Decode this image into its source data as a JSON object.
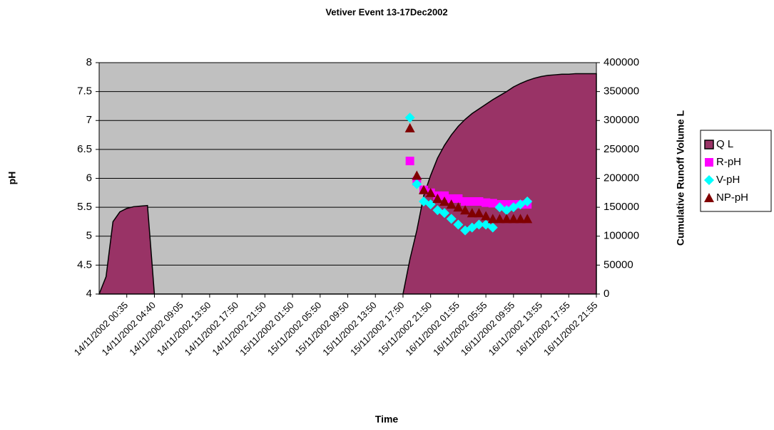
{
  "chart_data": {
    "type": "area",
    "title": "Vetiver Event 13-17Dec2002",
    "xlabel": "Time",
    "ylabel": "pH",
    "y2label": "Cumulative Runoff Volume L",
    "categories": [
      null,
      null,
      null,
      null,
      "14/11/2002 00:35",
      null,
      null,
      null,
      "14/11/2002 04:40",
      null,
      null,
      null,
      "14/11/2002 09:05",
      null,
      null,
      null,
      "14/11/2002 13:50",
      null,
      null,
      null,
      "14/11/2002 17:50",
      null,
      null,
      null,
      "14/11/2002 21:50",
      null,
      null,
      null,
      "15/11/2002 01:50",
      null,
      null,
      null,
      "15/11/2002 05:50",
      null,
      null,
      null,
      "15/11/2002 09:50",
      null,
      null,
      null,
      "15/11/2002 13:50",
      null,
      null,
      null,
      "15/11/2002 17:50",
      null,
      null,
      null,
      "15/11/2002 21:50",
      null,
      null,
      null,
      "16/11/2002 01:55",
      null,
      null,
      null,
      "16/11/2002 05:55",
      null,
      null,
      null,
      "16/11/2002 09:55",
      null,
      null,
      null,
      "16/11/2002 13:55",
      null,
      null,
      null,
      "16/11/2002 17:55",
      null,
      null,
      null,
      "16/11/2002 21:55"
    ],
    "series": [
      {
        "name": "Q L",
        "type": "area",
        "axis": "y2",
        "color": "#993366",
        "marker": "square",
        "values": [
          0,
          30000,
          125000,
          142000,
          148000,
          151000,
          152000,
          153000,
          0,
          0,
          0,
          0,
          0,
          0,
          0,
          0,
          0,
          0,
          0,
          0,
          0,
          0,
          0,
          0,
          0,
          0,
          0,
          0,
          0,
          0,
          0,
          0,
          0,
          0,
          0,
          0,
          0,
          0,
          0,
          0,
          0,
          0,
          0,
          0,
          0,
          60000,
          110000,
          170000,
          205000,
          235000,
          257000,
          275000,
          290000,
          302000,
          312000,
          320000,
          328000,
          336000,
          343000,
          350000,
          358000,
          364000,
          369000,
          373000,
          376000,
          378000,
          379000,
          380000,
          380000,
          381000,
          381000,
          381000,
          381000
        ]
      },
      {
        "name": "R-pH",
        "type": "scatter",
        "color": "#ff00ff",
        "marker": "square",
        "values": [
          null,
          null,
          null,
          null,
          null,
          null,
          null,
          null,
          null,
          null,
          null,
          null,
          null,
          null,
          null,
          null,
          null,
          null,
          null,
          null,
          null,
          null,
          null,
          null,
          null,
          null,
          null,
          null,
          null,
          null,
          null,
          null,
          null,
          null,
          null,
          null,
          null,
          null,
          null,
          null,
          null,
          null,
          null,
          null,
          null,
          6.3,
          5.95,
          5.8,
          5.75,
          5.7,
          5.7,
          5.65,
          5.65,
          5.6,
          5.6,
          5.6,
          5.58,
          5.57,
          5.55,
          5.55,
          5.55,
          5.55,
          5.55,
          null,
          null,
          null,
          null,
          null,
          null,
          null,
          null,
          null,
          null
        ]
      },
      {
        "name": "V-pH",
        "type": "scatter",
        "color": "#00ffff",
        "marker": "diamond",
        "values": [
          null,
          null,
          null,
          null,
          null,
          null,
          null,
          null,
          null,
          null,
          null,
          null,
          null,
          null,
          null,
          null,
          null,
          null,
          null,
          null,
          null,
          null,
          null,
          null,
          null,
          null,
          null,
          null,
          null,
          null,
          null,
          null,
          null,
          null,
          null,
          null,
          null,
          null,
          null,
          null,
          null,
          null,
          null,
          null,
          null,
          7.05,
          5.9,
          5.6,
          5.55,
          5.45,
          5.4,
          5.3,
          5.2,
          5.1,
          5.15,
          5.2,
          5.2,
          5.15,
          5.5,
          5.45,
          5.5,
          5.55,
          5.6,
          null,
          null,
          null,
          null,
          null,
          null,
          null,
          null,
          null,
          null
        ]
      },
      {
        "name": "NP-pH",
        "type": "scatter",
        "color": "#800000",
        "marker": "triangle",
        "values": [
          null,
          null,
          null,
          null,
          null,
          null,
          null,
          null,
          null,
          null,
          null,
          null,
          null,
          null,
          null,
          null,
          null,
          null,
          null,
          null,
          null,
          null,
          null,
          null,
          null,
          null,
          null,
          null,
          null,
          null,
          null,
          null,
          null,
          null,
          null,
          null,
          null,
          null,
          null,
          null,
          null,
          null,
          null,
          null,
          null,
          6.87,
          6.05,
          5.8,
          5.75,
          5.65,
          5.6,
          5.55,
          5.5,
          5.45,
          5.4,
          5.4,
          5.35,
          5.3,
          5.3,
          5.3,
          5.3,
          5.3,
          5.3,
          null,
          null,
          null,
          null,
          null,
          null,
          null,
          null,
          null,
          null
        ]
      }
    ],
    "ylim": [
      4,
      8
    ],
    "yticks": [
      4,
      4.5,
      5,
      5.5,
      6,
      6.5,
      7,
      7.5,
      8
    ],
    "y2lim": [
      0,
      400000
    ],
    "y2ticks": [
      0,
      50000,
      100000,
      150000,
      200000,
      250000,
      300000,
      350000,
      400000
    ],
    "grid": true,
    "legend": "right",
    "plot_background": "#c0c0c0"
  }
}
